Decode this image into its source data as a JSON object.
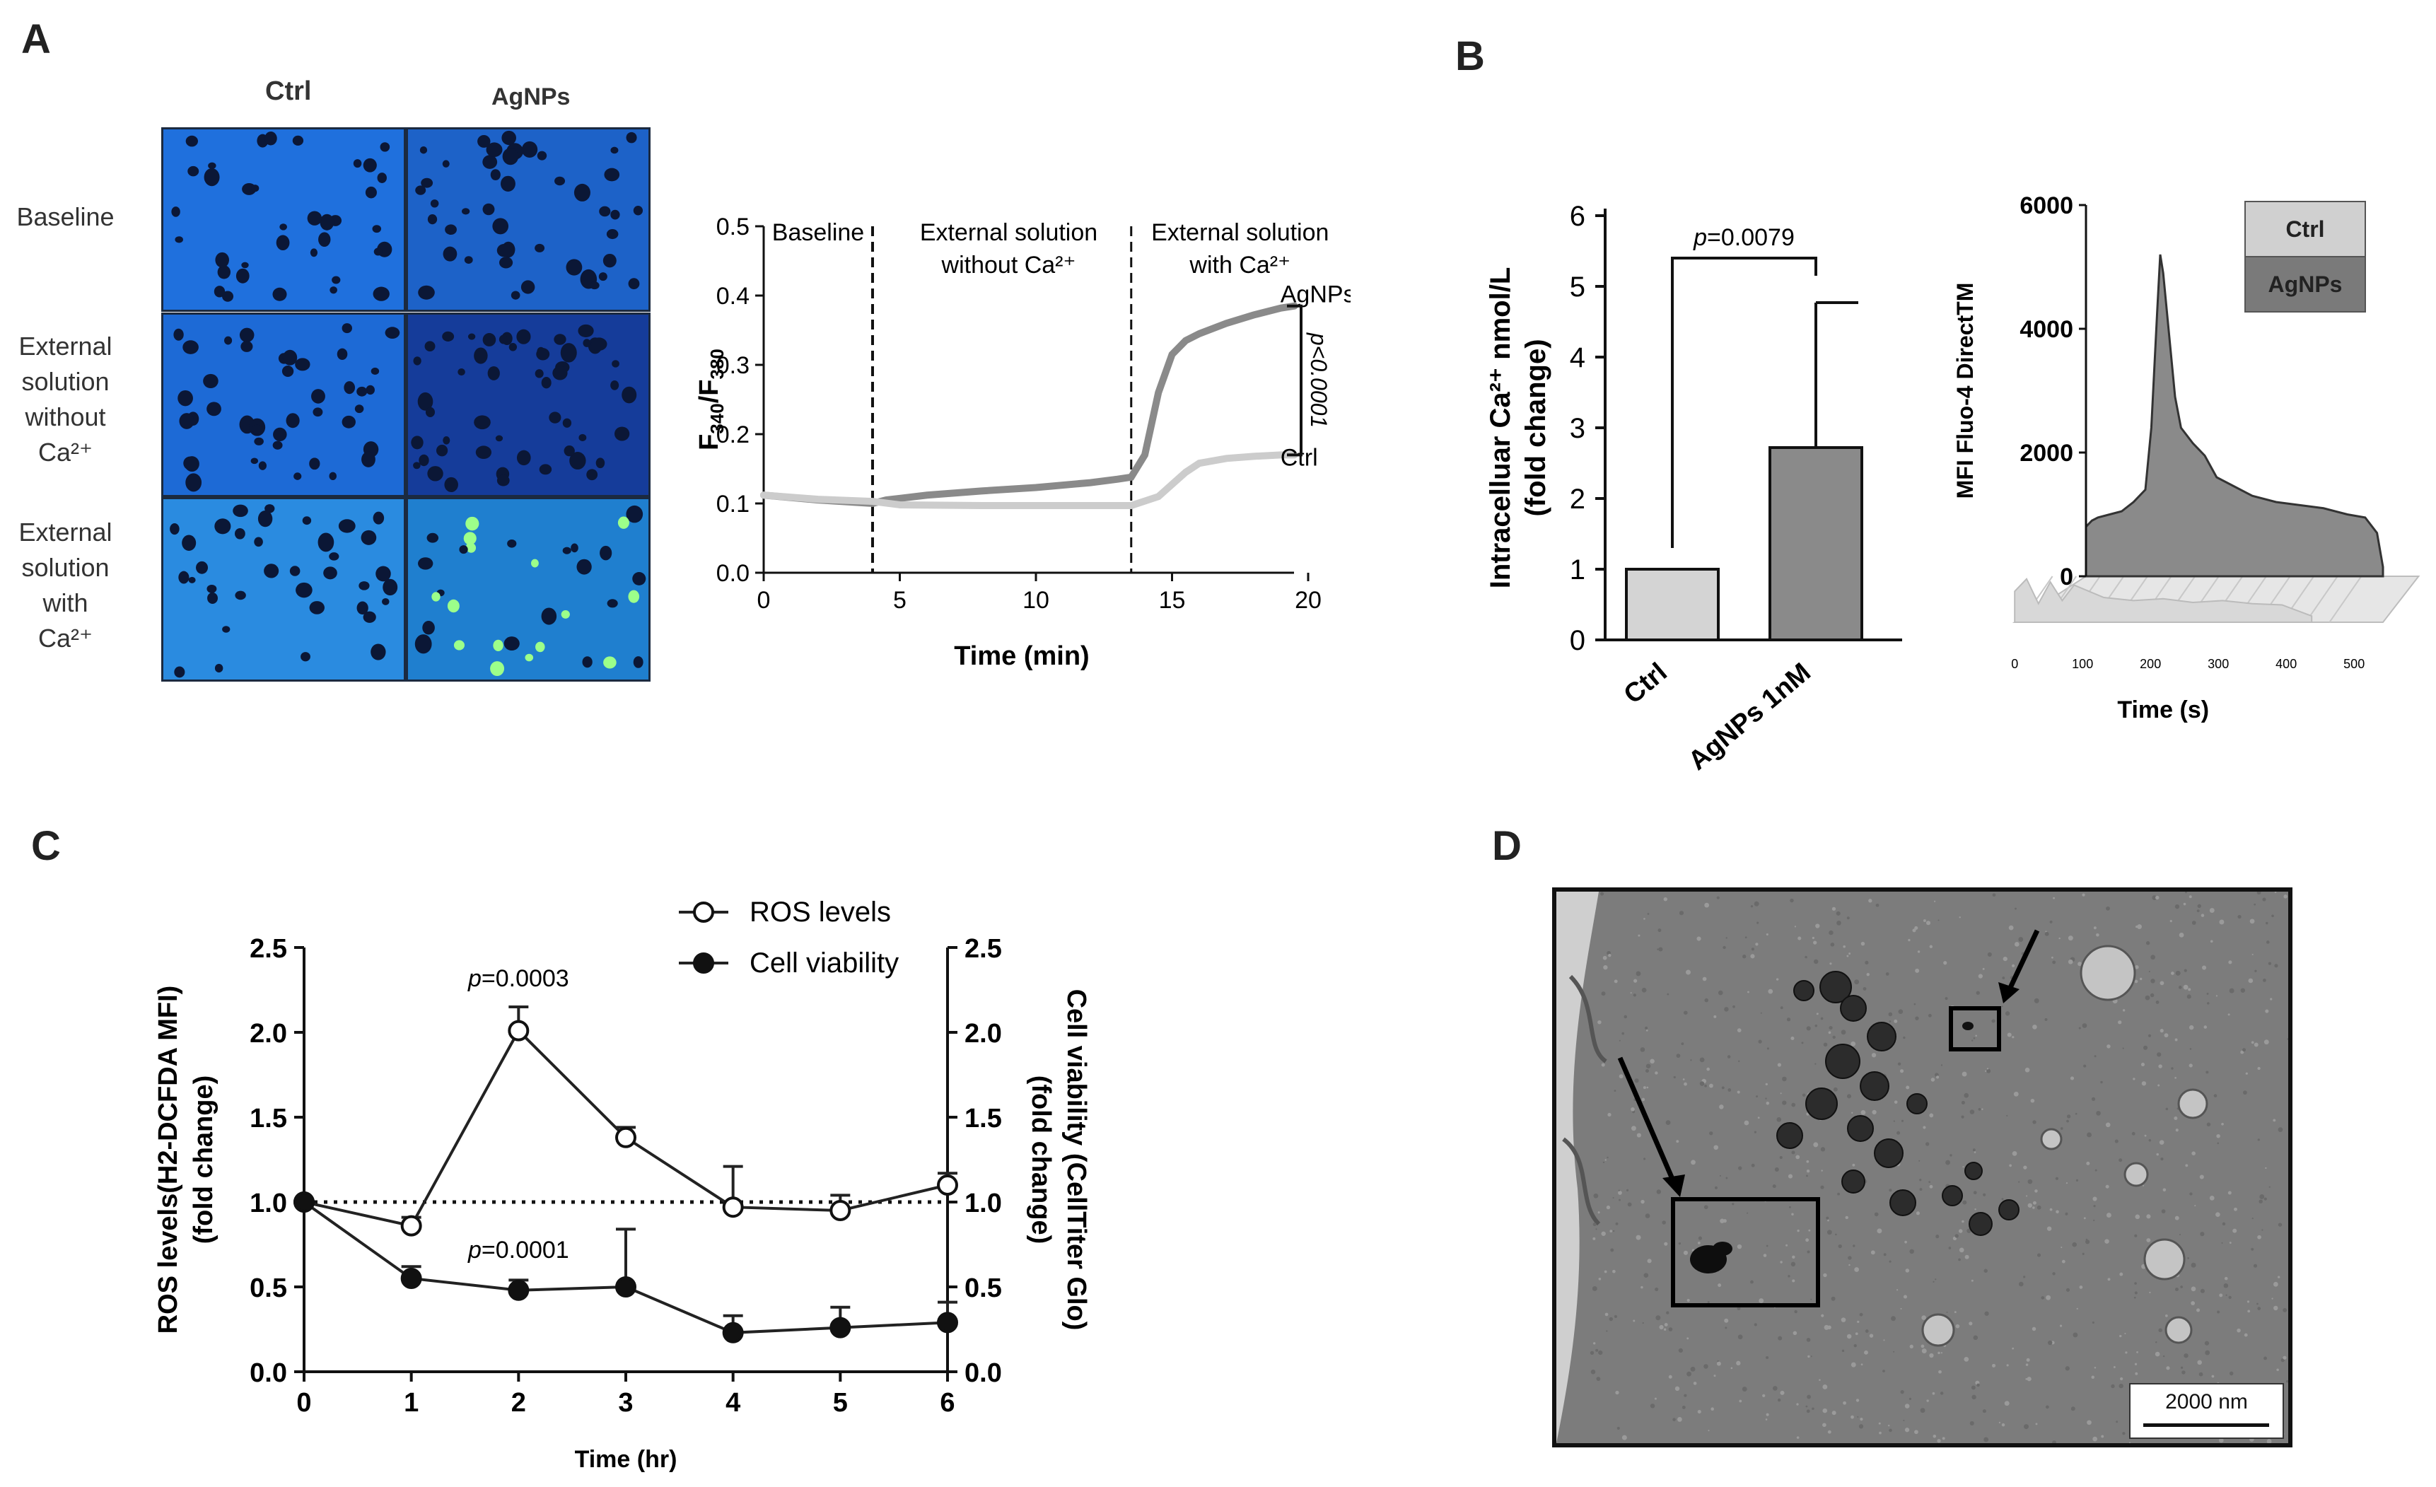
{
  "panels": {
    "a": "A",
    "b": "B",
    "c": "C",
    "d": "D"
  },
  "panel_a": {
    "columns": [
      "Ctrl",
      "AgNPs"
    ],
    "rows": [
      {
        "lines": [
          "Baseline"
        ]
      },
      {
        "lines": [
          "External",
          "solution",
          "without",
          "Ca²⁺"
        ]
      },
      {
        "lines": [
          "External",
          "solution",
          "with",
          "Ca²⁺"
        ]
      }
    ],
    "image_tiles": [
      "ctrl-baseline",
      "agnps-baseline",
      "ctrl-without-ca",
      "agnps-without-ca",
      "ctrl-with-ca",
      "agnps-with-ca"
    ],
    "tile_colors": {
      "base": "#1f6fdc",
      "dark": "#0d2f8a",
      "cell": "#0b1736",
      "bright": "#9cff8a"
    }
  },
  "chart_data": [
    {
      "id": "ratio",
      "type": "line",
      "title": "",
      "xlabel": "Time (min)",
      "ylabel": "F340/F380",
      "ylabel_main": "F",
      "ylabel_sub1": "340",
      "ylabel_sep": "/F",
      "ylabel_sub2": "380",
      "xlim": [
        0,
        20
      ],
      "ylim": [
        0,
        0.5
      ],
      "xticks": [
        0,
        5,
        10,
        15,
        20
      ],
      "yticks": [
        "0.0",
        "0.1",
        "0.2",
        "0.3",
        "0.4",
        "0.5"
      ],
      "phase_labels": [
        {
          "lines": [
            "Baseline"
          ],
          "x": 2
        },
        {
          "lines": [
            "External solution",
            "without Ca²⁺"
          ],
          "x": 9
        },
        {
          "lines": [
            "External solution",
            "with Ca²⁺"
          ],
          "x": 17.5
        }
      ],
      "dividers": [
        4,
        13.5
      ],
      "series": [
        {
          "name": "AgNPs",
          "color": "#8a8a8a",
          "x": [
            0,
            2,
            4,
            4.5,
            6,
            8,
            10,
            12,
            13,
            13.5,
            14,
            14.5,
            15,
            15.5,
            16,
            17,
            18,
            19,
            19.5
          ],
          "y": [
            0.112,
            0.105,
            0.1,
            0.105,
            0.112,
            0.118,
            0.123,
            0.13,
            0.135,
            0.138,
            0.17,
            0.26,
            0.315,
            0.335,
            0.345,
            0.36,
            0.372,
            0.382,
            0.385
          ]
        },
        {
          "name": "Ctrl",
          "color": "#cccccc",
          "x": [
            0,
            2,
            4,
            5,
            8,
            10,
            12,
            13.5,
            14.5,
            15.5,
            16,
            17,
            18,
            19,
            19.5
          ],
          "y": [
            0.112,
            0.106,
            0.103,
            0.098,
            0.097,
            0.097,
            0.097,
            0.097,
            0.11,
            0.145,
            0.158,
            0.165,
            0.168,
            0.17,
            0.17
          ]
        }
      ],
      "significance": "p<0.0001"
    },
    {
      "id": "intracellular-ca",
      "type": "bar",
      "categories": [
        "Ctrl",
        "AgNPs 1nM"
      ],
      "values": [
        1.0,
        2.72
      ],
      "errors": [
        0,
        2.05
      ],
      "colors": [
        "#d4d4d4",
        "#8a8a8a"
      ],
      "ylabel_line1": "Intracelluar Ca²⁺ nmol/L",
      "ylabel_line2": "(fold change)",
      "ylim": [
        0,
        6
      ],
      "yticks": [
        "0",
        "1",
        "2",
        "3",
        "4",
        "5",
        "6"
      ],
      "significance": "p=0.0079",
      "sig_p": "p",
      "sig_value": "=0.0079"
    },
    {
      "id": "fluo4-histogram",
      "type": "area",
      "ylabel": "MFI Fluo-4 DirectTM",
      "xlabel": "Time (s)",
      "yticks": [
        "0",
        "2000",
        "4000",
        "6000"
      ],
      "xticks": [
        "0",
        "100",
        "200",
        "300",
        "400",
        "500"
      ],
      "ylim": [
        0,
        6000
      ],
      "legend": [
        "Ctrl",
        "AgNPs"
      ],
      "legend_colors": [
        "#d0d0d0",
        "#7a7a7a"
      ],
      "series": [
        {
          "name": "AgNPs",
          "x": [
            0,
            10,
            20,
            40,
            60,
            80,
            100,
            110,
            120,
            125,
            130,
            140,
            150,
            160,
            180,
            200,
            220,
            250,
            280,
            320,
            360,
            400,
            440,
            470,
            490,
            500
          ],
          "y": [
            800,
            900,
            950,
            1000,
            1050,
            1200,
            1400,
            2400,
            4300,
            5200,
            4900,
            3900,
            2900,
            2400,
            2150,
            1950,
            1600,
            1450,
            1300,
            1200,
            1150,
            1100,
            1000,
            950,
            700,
            150
          ]
        },
        {
          "name": "Ctrl",
          "x": [
            0,
            20,
            40,
            60,
            80,
            100,
            150,
            200,
            250,
            300,
            350,
            400,
            450,
            500
          ],
          "y": [
            500,
            700,
            300,
            650,
            350,
            600,
            400,
            350,
            380,
            320,
            350,
            300,
            280,
            100
          ]
        }
      ]
    },
    {
      "id": "ros-viability",
      "type": "line",
      "xlabel": "Time (hr)",
      "ylabel_left_1": "ROS levels(H2-DCFDA MFI)",
      "ylabel_left_2": "(fold change)",
      "ylabel_right_1": "Cell viability (CellTiter Glo)",
      "ylabel_right_2": "(fold change)",
      "xlim": [
        0,
        6
      ],
      "ylim": [
        0,
        2.5
      ],
      "xticks": [
        "0",
        "1",
        "2",
        "3",
        "4",
        "5",
        "6"
      ],
      "yticks": [
        "0.0",
        "0.5",
        "1.0",
        "1.5",
        "2.0",
        "2.5"
      ],
      "baseline": 1.0,
      "series": [
        {
          "name": "ROS levels",
          "marker": "open",
          "x": [
            0,
            1,
            2,
            3,
            4,
            5,
            6
          ],
          "y": [
            1.0,
            0.86,
            2.01,
            1.38,
            0.97,
            0.95,
            1.1
          ],
          "err": [
            0,
            0.05,
            0.14,
            0.06,
            0.24,
            0.09,
            0.07
          ]
        },
        {
          "name": "Cell viability",
          "marker": "filled",
          "x": [
            0,
            1,
            2,
            3,
            4,
            5,
            6
          ],
          "y": [
            1.0,
            0.55,
            0.48,
            0.5,
            0.23,
            0.26,
            0.29
          ],
          "err": [
            0,
            0.07,
            0.06,
            0.34,
            0.1,
            0.12,
            0.12
          ]
        }
      ],
      "annotations": [
        {
          "p": "p",
          "value": "=0.0003",
          "x": 2,
          "y": 2.27
        },
        {
          "p": "p",
          "value": "=0.0001",
          "x": 2,
          "y": 0.67
        }
      ]
    }
  ],
  "panel_d": {
    "scale_bar": "2000 nm",
    "colors": {
      "bg": "#8c8c8c",
      "cytoplasm": "#7a7a7a",
      "dense": "#2a2a2a"
    }
  }
}
